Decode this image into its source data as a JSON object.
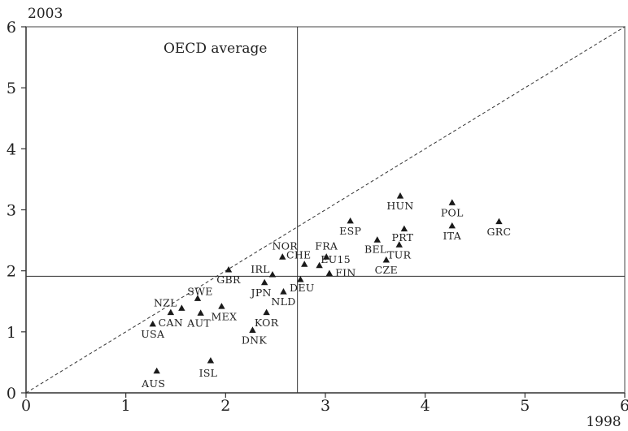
{
  "chart_data": {
    "type": "scatter",
    "title": "",
    "xlabel": "1998",
    "ylabel": "2003",
    "xlim": [
      0,
      6
    ],
    "ylim": [
      0,
      6
    ],
    "xticks": [
      "0",
      "1",
      "2",
      "3",
      "4",
      "5",
      "6"
    ],
    "yticks": [
      "0",
      "1",
      "2",
      "3",
      "4",
      "5",
      "6"
    ],
    "grid": false,
    "reference_lines": {
      "diagonal": "y = x",
      "oecd_average_x": 2.72,
      "oecd_average_y": 1.91,
      "label": "OECD average"
    },
    "points": [
      {
        "label": "HUN",
        "x": 3.75,
        "y": 3.23
      },
      {
        "label": "POL",
        "x": 4.27,
        "y": 3.12
      },
      {
        "label": "GRC",
        "x": 4.74,
        "y": 2.81
      },
      {
        "label": "ESP",
        "x": 3.25,
        "y": 2.82
      },
      {
        "label": "PRT",
        "x": 3.79,
        "y": 2.69
      },
      {
        "label": "ITA",
        "x": 4.27,
        "y": 2.74
      },
      {
        "label": "BEL",
        "x": 3.52,
        "y": 2.51
      },
      {
        "label": "TUR",
        "x": 3.74,
        "y": 2.43
      },
      {
        "label": "FRA",
        "x": 3.01,
        "y": 2.23
      },
      {
        "label": "NOR",
        "x": 2.57,
        "y": 2.23
      },
      {
        "label": "CZE",
        "x": 3.61,
        "y": 2.18
      },
      {
        "label": "CHE",
        "x": 2.79,
        "y": 2.11
      },
      {
        "label": "EU15",
        "x": 2.94,
        "y": 2.09
      },
      {
        "label": "GBR",
        "x": 2.03,
        "y": 2.02
      },
      {
        "label": "IRL",
        "x": 2.47,
        "y": 1.94
      },
      {
        "label": "FIN",
        "x": 3.04,
        "y": 1.96
      },
      {
        "label": "DEU",
        "x": 2.75,
        "y": 1.86
      },
      {
        "label": "JPN",
        "x": 2.39,
        "y": 1.81
      },
      {
        "label": "NLD",
        "x": 2.58,
        "y": 1.66
      },
      {
        "label": "SWE",
        "x": 1.72,
        "y": 1.55
      },
      {
        "label": "NZL",
        "x": 1.56,
        "y": 1.39
      },
      {
        "label": "MEX",
        "x": 1.96,
        "y": 1.42
      },
      {
        "label": "CAN",
        "x": 1.45,
        "y": 1.32
      },
      {
        "label": "AUT",
        "x": 1.75,
        "y": 1.31
      },
      {
        "label": "KOR",
        "x": 2.41,
        "y": 1.32
      },
      {
        "label": "USA",
        "x": 1.27,
        "y": 1.13
      },
      {
        "label": "DNK",
        "x": 2.27,
        "y": 1.03
      },
      {
        "label": "ISL",
        "x": 1.85,
        "y": 0.53
      },
      {
        "label": "AUS",
        "x": 1.31,
        "y": 0.36
      }
    ]
  }
}
